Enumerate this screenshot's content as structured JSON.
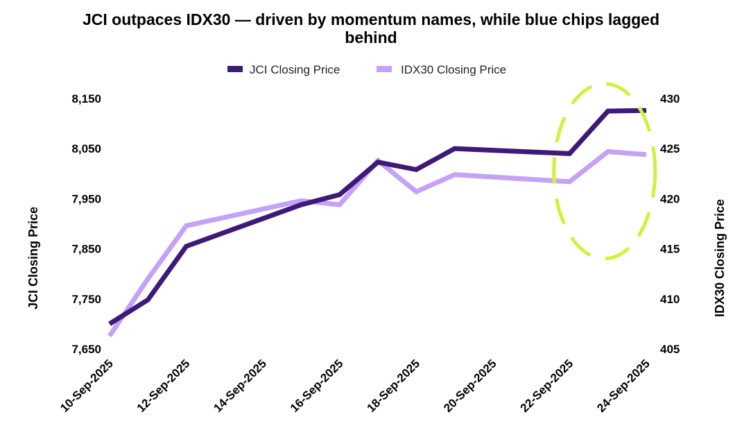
{
  "chart_data": {
    "type": "line",
    "title_line1": "JCI outpaces IDX30 —  driven by momentum names, while blue chips lagged",
    "title_line2": "behind",
    "legend_position": "top",
    "grid": false,
    "x_labels": [
      "10-Sep-2025",
      "12-Sep-2025",
      "14-Sep-2025",
      "16-Sep-2025",
      "18-Sep-2025",
      "20-Sep-2025",
      "22-Sep-2025",
      "24-Sep-2025"
    ],
    "x_range": [
      "2025-09-10",
      "2025-09-24"
    ],
    "y_left": {
      "label": "JCI Closing Price",
      "range": [
        7650,
        8150
      ],
      "ticks": [
        "7,650",
        "7,750",
        "7,850",
        "7,950",
        "8,050",
        "8,150"
      ]
    },
    "y_right": {
      "label": "IDX30 Closing Price",
      "range": [
        405,
        430
      ],
      "ticks": [
        "405",
        "410",
        "415",
        "420",
        "425",
        "430"
      ]
    },
    "series": [
      {
        "name": "JCI Closing Price",
        "axis": "left",
        "color": "#3d1a78",
        "points": [
          [
            "2025-09-10",
            7700
          ],
          [
            "2025-09-11",
            7748
          ],
          [
            "2025-09-12",
            7855
          ],
          [
            "2025-09-15",
            7938
          ],
          [
            "2025-09-16",
            7958
          ],
          [
            "2025-09-17",
            8023
          ],
          [
            "2025-09-18",
            8008
          ],
          [
            "2025-09-19",
            8050
          ],
          [
            "2025-09-22",
            8040
          ],
          [
            "2025-09-23",
            8125
          ],
          [
            "2025-09-24",
            8126
          ]
        ]
      },
      {
        "name": "IDX30 Closing Price",
        "axis": "right",
        "color": "#c3a2f7",
        "points": [
          [
            "2025-09-10",
            406.3
          ],
          [
            "2025-09-11",
            412.0
          ],
          [
            "2025-09-12",
            417.3
          ],
          [
            "2025-09-15",
            419.8
          ],
          [
            "2025-09-16",
            419.4
          ],
          [
            "2025-09-17",
            423.8
          ],
          [
            "2025-09-18",
            420.7
          ],
          [
            "2025-09-19",
            422.4
          ],
          [
            "2025-09-22",
            421.7
          ],
          [
            "2025-09-23",
            424.7
          ],
          [
            "2025-09-24",
            424.4
          ]
        ]
      }
    ],
    "annotation": {
      "shape": "dashed-ellipse",
      "color": "#d4f03c",
      "x_center": "2025-09-23",
      "y_center_left": 8005
    }
  }
}
